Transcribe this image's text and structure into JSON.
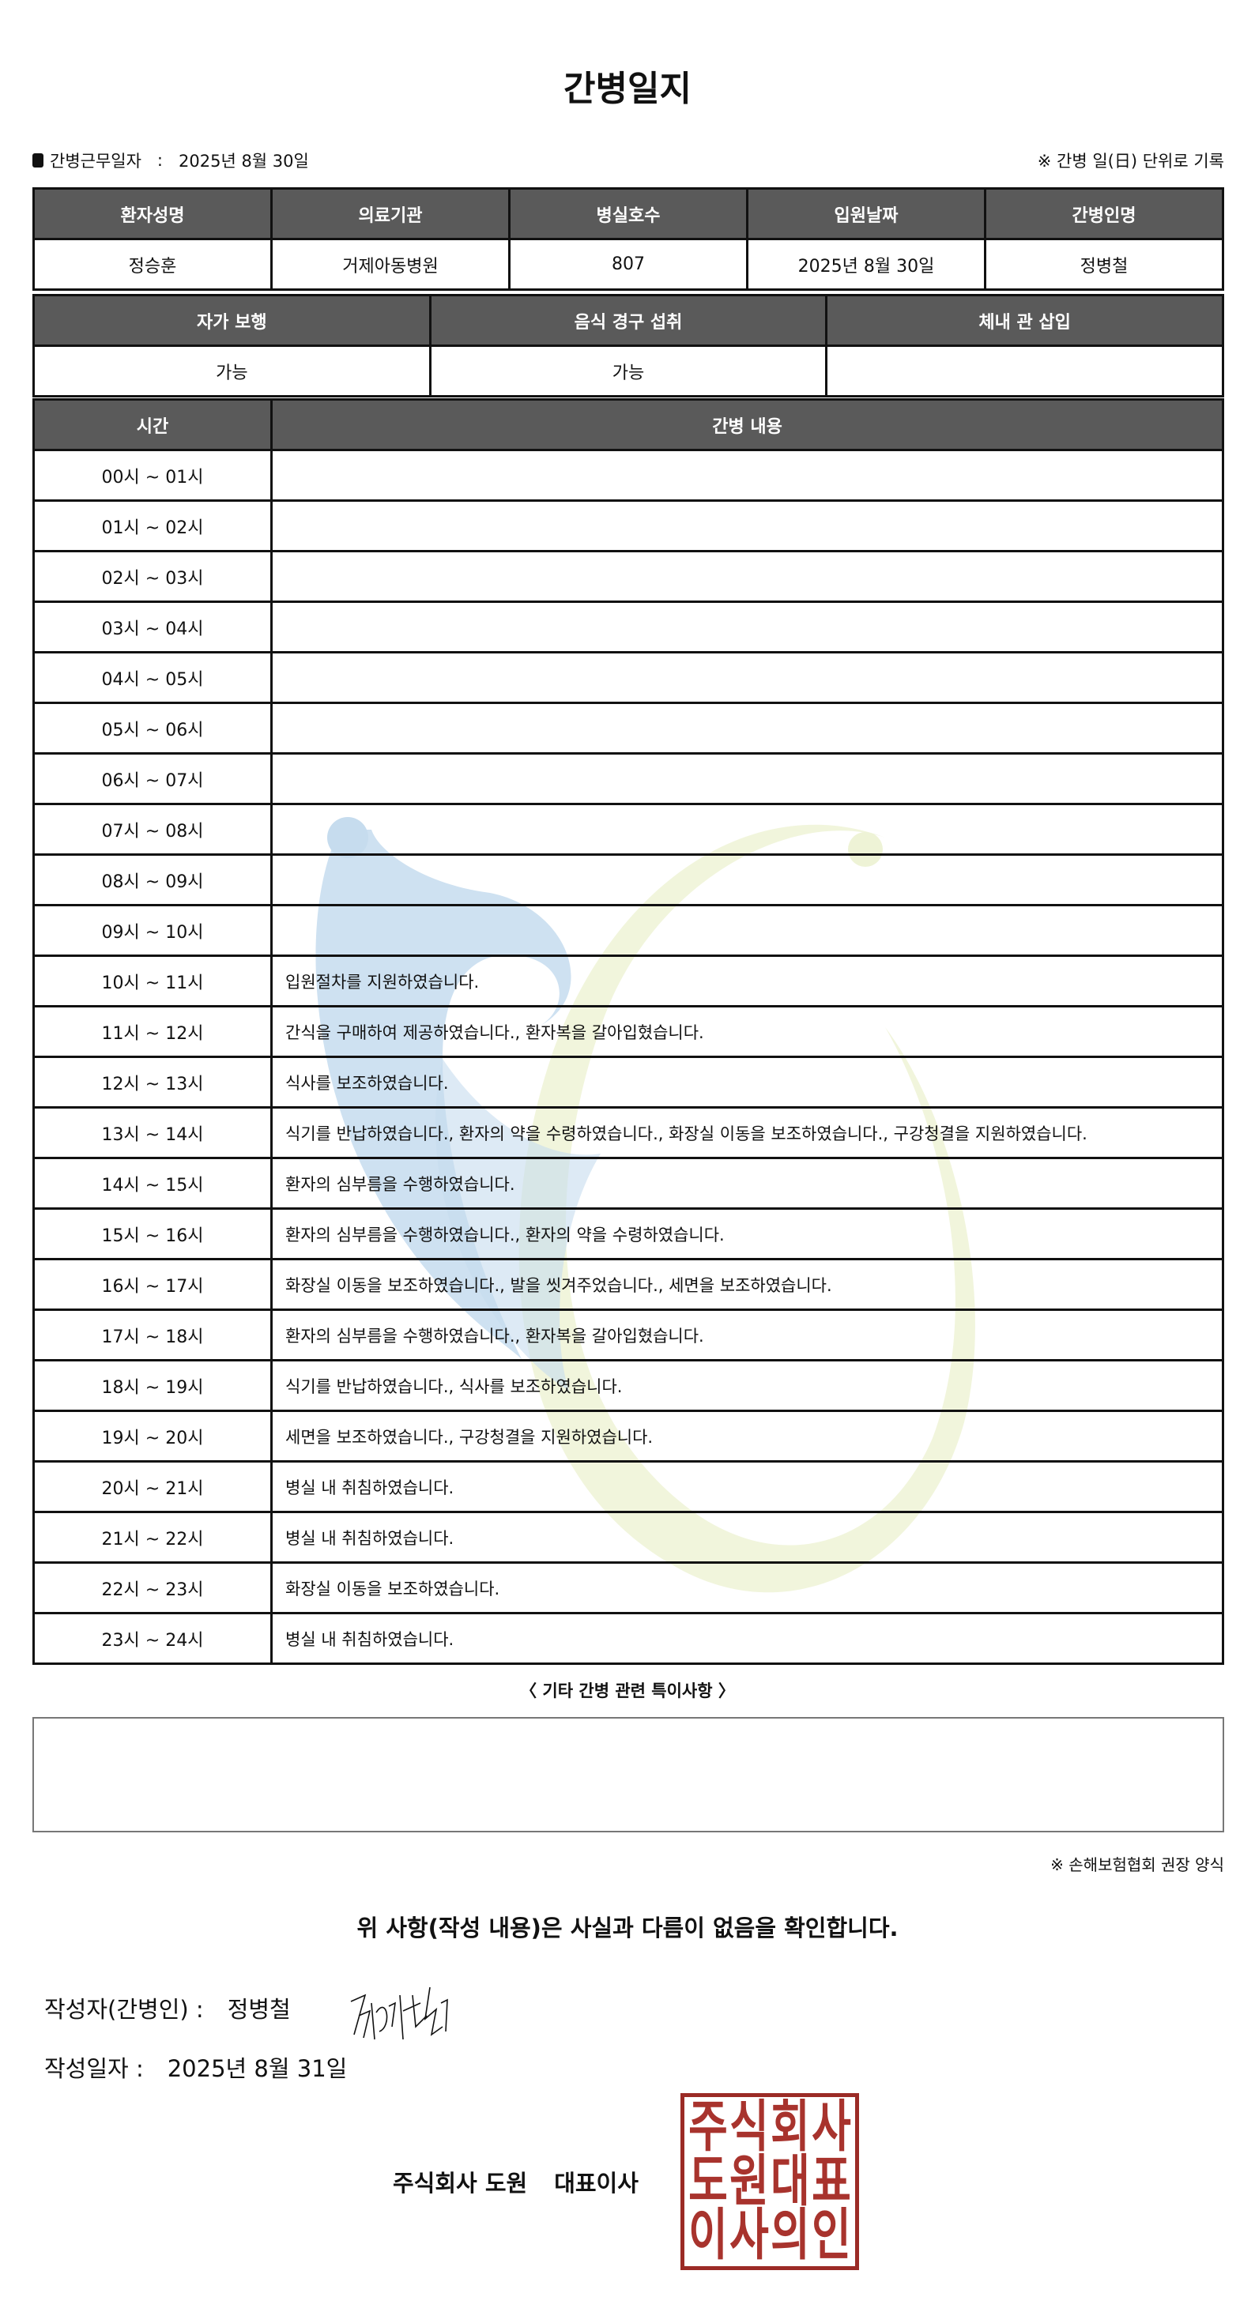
{
  "title": "간병일지",
  "work_date_label": "간병근무일자",
  "work_date_sep": ":",
  "work_date": "2025년 8월 30일",
  "record_note": "※ 간병 일(日) 단위로 기록",
  "info_table": {
    "headers": [
      "환자성명",
      "의료기관",
      "병실호수",
      "입원날짜",
      "간병인명"
    ],
    "values": [
      "정승훈",
      "거제아동병원",
      "807",
      "2025년 8월 30일",
      "정병철"
    ]
  },
  "status_table": {
    "headers": [
      "자가 보행",
      "음식 경구 섭취",
      "체내 관 삽입"
    ],
    "values": [
      "가능",
      "가능",
      ""
    ]
  },
  "log_table": {
    "headers": [
      "시간",
      "간병 내용"
    ],
    "rows": [
      {
        "time": "00시 ~ 01시",
        "content": ""
      },
      {
        "time": "01시 ~ 02시",
        "content": ""
      },
      {
        "time": "02시 ~ 03시",
        "content": ""
      },
      {
        "time": "03시 ~ 04시",
        "content": ""
      },
      {
        "time": "04시 ~ 05시",
        "content": ""
      },
      {
        "time": "05시 ~ 06시",
        "content": ""
      },
      {
        "time": "06시 ~ 07시",
        "content": ""
      },
      {
        "time": "07시 ~ 08시",
        "content": ""
      },
      {
        "time": "08시 ~ 09시",
        "content": ""
      },
      {
        "time": "09시 ~ 10시",
        "content": ""
      },
      {
        "time": "10시 ~ 11시",
        "content": "입원절차를 지원하였습니다."
      },
      {
        "time": "11시 ~ 12시",
        "content": "간식을 구매하여 제공하였습니다., 환자복을 갈아입혔습니다."
      },
      {
        "time": "12시 ~ 13시",
        "content": "식사를 보조하였습니다."
      },
      {
        "time": "13시 ~ 14시",
        "content": "식기를 반납하였습니다., 환자의 약을 수령하였습니다., 화장실 이동을 보조하였습니다., 구강청결을 지원하였습니다."
      },
      {
        "time": "14시 ~ 15시",
        "content": "환자의 심부름을 수행하였습니다."
      },
      {
        "time": "15시 ~ 16시",
        "content": "환자의 심부름을 수행하였습니다., 환자의 약을 수령하였습니다."
      },
      {
        "time": "16시 ~ 17시",
        "content": "화장실 이동을 보조하였습니다., 발을 씻겨주었습니다., 세면을 보조하였습니다."
      },
      {
        "time": "17시 ~ 18시",
        "content": "환자의 심부름을 수행하였습니다., 환자복을 갈아입혔습니다."
      },
      {
        "time": "18시 ~ 19시",
        "content": "식기를 반납하였습니다., 식사를 보조하였습니다."
      },
      {
        "time": "19시 ~ 20시",
        "content": "세면을 보조하였습니다., 구강청결을 지원하였습니다."
      },
      {
        "time": "20시 ~ 21시",
        "content": "병실 내 취침하였습니다."
      },
      {
        "time": "21시 ~ 22시",
        "content": "병실 내 취침하였습니다."
      },
      {
        "time": "22시 ~ 23시",
        "content": "화장실 이동을 보조하였습니다."
      },
      {
        "time": "23시 ~ 24시",
        "content": "병실 내 취침하였습니다."
      }
    ]
  },
  "notes_label": "〈 기타 간병 관련 특이사항 〉",
  "notes_value": "",
  "footnote": "※ 손해보험협회 권장 양식",
  "confirmation": "위 사항(작성 내용)은 사실과 다름이 없음을 확인합니다.",
  "writer_label": "작성자(간병인) :",
  "writer_name": "정병철",
  "written_date_label": "작성일자 :",
  "written_date": "2025년 8월 31일",
  "company_name": "주식회사 도원",
  "company_title": "대표이사",
  "stamp_text": [
    "주",
    "식",
    "회",
    "사",
    "도",
    "원",
    "대",
    "표",
    "이",
    "사",
    "의",
    "인"
  ],
  "colors": {
    "header_bg": "#5a5a5a",
    "stamp": "#a8332d",
    "watermark_blue": "#c6dcee",
    "watermark_green": "#eef3d6"
  }
}
